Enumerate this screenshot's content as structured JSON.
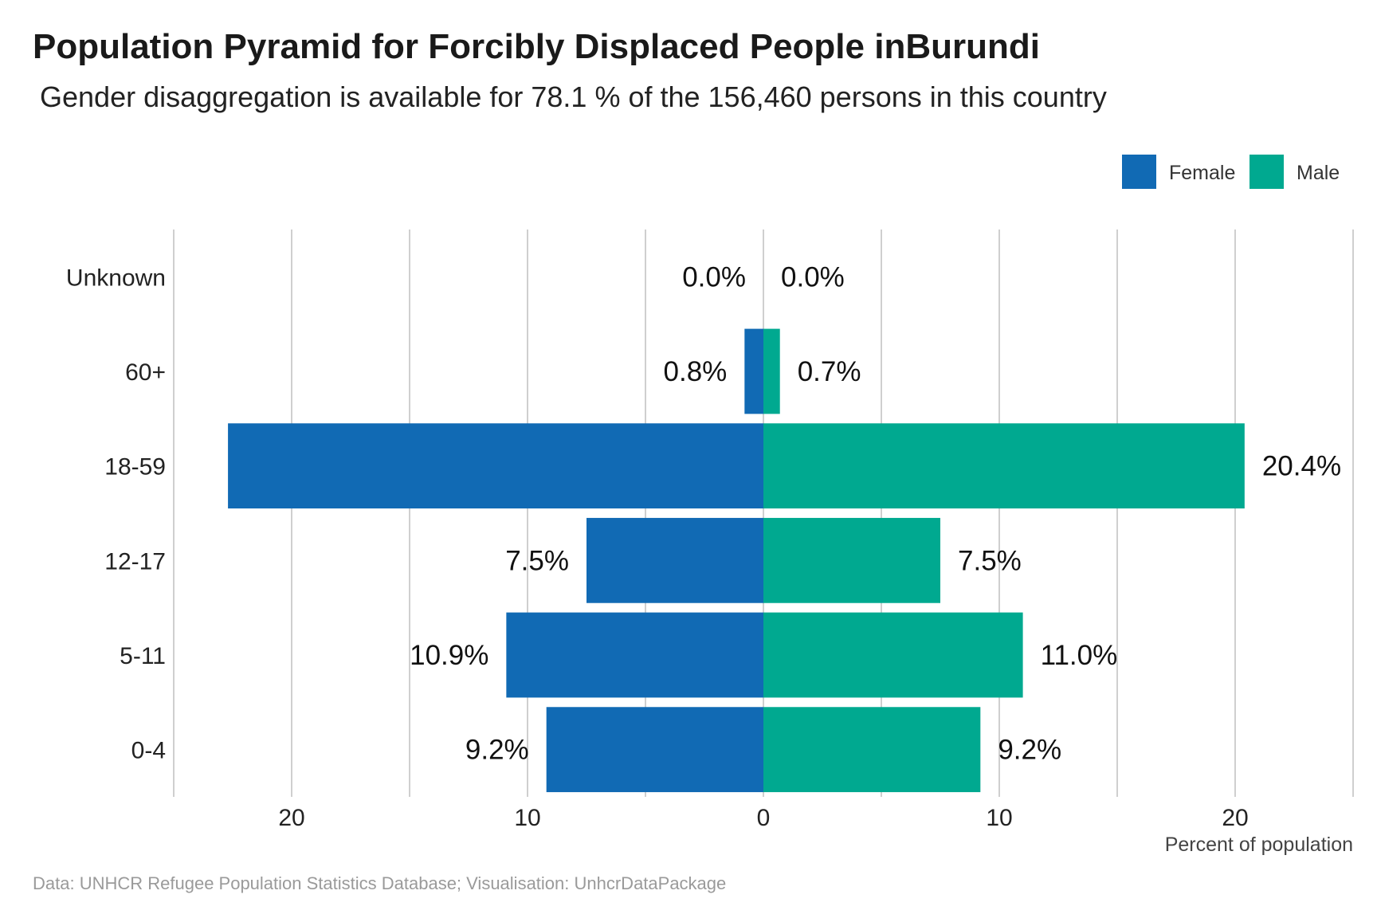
{
  "chart_data": {
    "type": "bar",
    "orientation": "horizontal-diverging",
    "title": "Population Pyramid for Forcibly Displaced People inBurundi",
    "subtitle": "Gender disaggregation is available for 78.1 % of the 156,460 persons in this country",
    "caption": "Data: UNHCR Refugee Population Statistics Database; Visualisation: UnhcrDataPackage",
    "xlabel": "Percent of population",
    "ylabel": "",
    "categories": [
      "Unknown",
      "60+",
      "18-59",
      "12-17",
      "5-11",
      "0-4"
    ],
    "series": [
      {
        "name": "Female",
        "color": "#116ab4",
        "side": "left",
        "values": [
          0.0,
          0.8,
          22.7,
          7.5,
          10.9,
          9.2
        ],
        "labels": [
          "0.0%",
          "0.8%",
          "22.7%",
          "7.5%",
          "10.9%",
          "9.2%"
        ],
        "label_visible": [
          true,
          true,
          false,
          true,
          true,
          true
        ]
      },
      {
        "name": "Male",
        "color": "#00a990",
        "side": "right",
        "values": [
          0.0,
          0.7,
          20.4,
          7.5,
          11.0,
          9.2
        ],
        "labels": [
          "0.0%",
          "0.7%",
          "20.4%",
          "7.5%",
          "11.0%",
          "9.2%"
        ],
        "label_visible": [
          true,
          true,
          true,
          true,
          true,
          true
        ]
      }
    ],
    "xlim": [
      -25,
      25
    ],
    "xticks": [
      -20,
      -10,
      0,
      10,
      20
    ],
    "xtick_labels": [
      "20",
      "10",
      "0",
      "10",
      "20"
    ],
    "grid": true,
    "legend_position": "top-right"
  }
}
